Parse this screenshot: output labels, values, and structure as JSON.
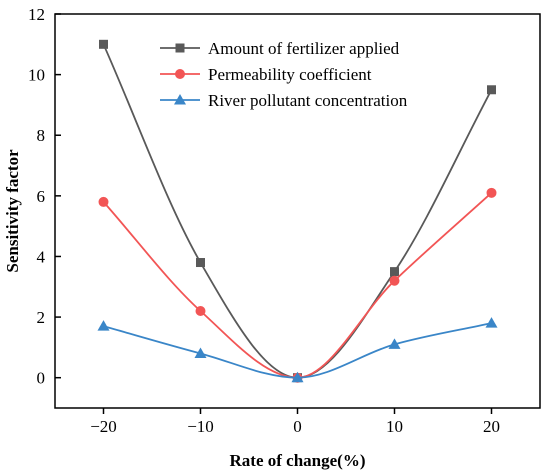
{
  "chart_data": {
    "type": "line",
    "xlabel": "Rate of change(%)",
    "ylabel": "Sensitivity factor",
    "x": [
      -20,
      -10,
      0,
      10,
      20
    ],
    "xlim": [
      -25,
      25
    ],
    "ylim": [
      -1,
      12
    ],
    "xticks": [
      -20,
      -10,
      0,
      10,
      20
    ],
    "xtick_labels": [
      "−20",
      "−10",
      "0",
      "10",
      "20"
    ],
    "yticks": [
      0,
      2,
      4,
      6,
      8,
      10,
      12
    ],
    "grid": false,
    "legend_position": "top-right",
    "series": [
      {
        "name": "Amount of fertilizer applied",
        "values": [
          11.0,
          3.8,
          0.0,
          3.5,
          9.5
        ],
        "color": "#595959",
        "marker": "square"
      },
      {
        "name": "Permeability coefficient",
        "values": [
          5.8,
          2.2,
          0.0,
          3.2,
          6.1
        ],
        "color": "#f25555",
        "marker": "circle"
      },
      {
        "name": "River pollutant concentration",
        "values": [
          1.7,
          0.8,
          0.0,
          1.1,
          1.8
        ],
        "color": "#3a86c8",
        "marker": "triangle"
      }
    ]
  }
}
